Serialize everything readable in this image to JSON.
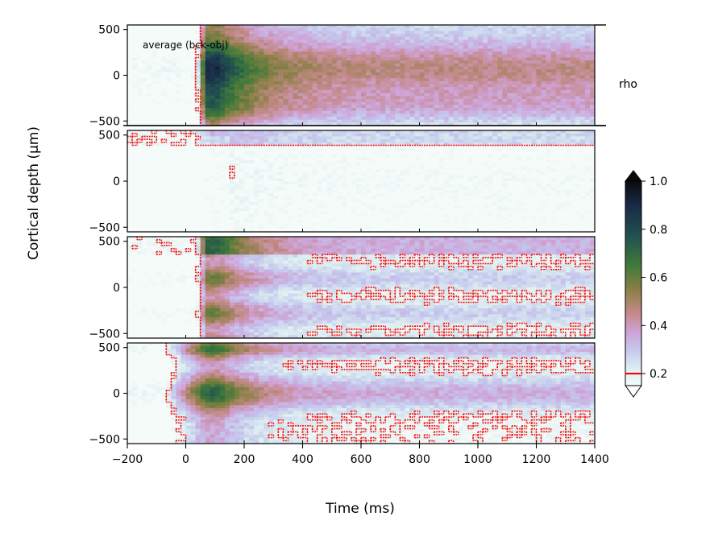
{
  "chart_data": {
    "type": "heatmap",
    "xlabel": "Time (ms)",
    "ylabel": "Cortical depth (µm)",
    "xlim": [
      -200,
      1400
    ],
    "ylim": [
      -550,
      550
    ],
    "xticks": [
      -200,
      0,
      200,
      400,
      600,
      800,
      1000,
      1200,
      1400
    ],
    "yticks": [
      -500,
      0,
      500
    ],
    "colorscale": {
      "label": "rho",
      "range": [
        0.15,
        1.0
      ],
      "ticks": [
        0.2,
        0.4,
        0.6,
        0.8,
        1.0
      ],
      "threshold": 0.2,
      "threshold_color": "#ff0000",
      "stops": [
        {
          "v": 0.15,
          "color": "#f4fbf9"
        },
        {
          "v": 0.22,
          "color": "#ddeef0"
        },
        {
          "v": 0.3,
          "color": "#c4c8ee"
        },
        {
          "v": 0.37,
          "color": "#cfa3d8"
        },
        {
          "v": 0.45,
          "color": "#c48a8a"
        },
        {
          "v": 0.55,
          "color": "#8a7f45"
        },
        {
          "v": 0.65,
          "color": "#3f7a3a"
        },
        {
          "v": 0.78,
          "color": "#1f4f4f"
        },
        {
          "v": 0.9,
          "color": "#1a2a48"
        },
        {
          "v": 1.0,
          "color": "#0a0a0a"
        }
      ]
    },
    "panels": [
      {
        "annotation": "average (bck-obj)",
        "onset_ms": 40,
        "peak_ms": 70,
        "peak": 0.88,
        "sustained": 0.45,
        "sustained_until_ms": 1400
      },
      {
        "annotation": "",
        "onset_ms": 40,
        "peak_ms": 90,
        "peak": 0.28,
        "sustained": 0.22,
        "sustained_until_ms": 1400
      },
      {
        "annotation": "",
        "onset_ms": 40,
        "peak_ms": 70,
        "peak": 0.62,
        "sustained": 0.3,
        "sustained_until_ms": 1400
      },
      {
        "annotation": "",
        "onset_ms": -60,
        "peak_ms": 70,
        "peak": 0.66,
        "sustained": 0.32,
        "sustained_until_ms": 1400
      }
    ]
  }
}
